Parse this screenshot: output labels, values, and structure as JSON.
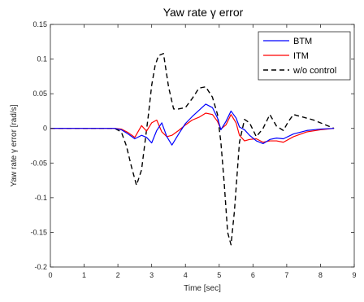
{
  "chart_data": {
    "type": "line",
    "title": "Yaw rate γ error",
    "xlabel": "Time [sec]",
    "ylabel": "Yaw rate γ error [rad/s]",
    "xlim": [
      0,
      9
    ],
    "ylim": [
      -0.2,
      0.15
    ],
    "xticks": [
      0,
      1,
      2,
      3,
      4,
      5,
      6,
      7,
      8,
      9
    ],
    "yticks": [
      -0.2,
      -0.15,
      -0.1,
      -0.05,
      0,
      0.05,
      0.1,
      0.15
    ],
    "ytick_labels": [
      "-0.2",
      "-0.15",
      "-0.1",
      "-0.05",
      "0",
      "0.05",
      "0.1",
      "0.15"
    ],
    "grid": false,
    "legend_position": "top-right",
    "series": [
      {
        "name": "BTM",
        "color": "#0000ff",
        "dash": "solid",
        "x": [
          0,
          1.9,
          2.1,
          2.3,
          2.5,
          2.7,
          2.85,
          3.0,
          3.15,
          3.3,
          3.45,
          3.6,
          3.8,
          4.0,
          4.2,
          4.4,
          4.6,
          4.8,
          4.95,
          5.05,
          5.2,
          5.35,
          5.5,
          5.6,
          5.75,
          5.9,
          6.1,
          6.3,
          6.5,
          6.7,
          6.9,
          7.2,
          7.6,
          8.0,
          8.4
        ],
        "y": [
          0,
          0,
          -0.002,
          -0.008,
          -0.015,
          -0.01,
          -0.013,
          -0.021,
          -0.003,
          0.008,
          -0.012,
          -0.024,
          -0.008,
          0.007,
          0.017,
          0.026,
          0.035,
          0.03,
          0.015,
          -0.002,
          0.01,
          0.025,
          0.015,
          0.002,
          -0.002,
          -0.01,
          -0.018,
          -0.022,
          -0.016,
          -0.014,
          -0.015,
          -0.008,
          -0.003,
          -0.001,
          0
        ]
      },
      {
        "name": "ITM",
        "color": "#ff0000",
        "dash": "solid",
        "x": [
          0,
          1.9,
          2.1,
          2.3,
          2.5,
          2.7,
          2.85,
          3.0,
          3.15,
          3.3,
          3.45,
          3.6,
          3.8,
          4.0,
          4.2,
          4.4,
          4.6,
          4.8,
          4.95,
          5.05,
          5.2,
          5.35,
          5.5,
          5.6,
          5.75,
          5.9,
          6.1,
          6.3,
          6.5,
          6.7,
          6.9,
          7.2,
          7.6,
          8.0,
          8.4
        ],
        "y": [
          0,
          0,
          -0.001,
          -0.006,
          -0.013,
          0.004,
          -0.004,
          0.008,
          0.012,
          -0.005,
          -0.012,
          -0.01,
          -0.003,
          0.005,
          0.012,
          0.016,
          0.022,
          0.02,
          0.01,
          -0.001,
          0.005,
          0.02,
          0.008,
          -0.01,
          -0.018,
          -0.016,
          -0.015,
          -0.02,
          -0.018,
          -0.018,
          -0.02,
          -0.012,
          -0.005,
          -0.002,
          0
        ]
      },
      {
        "name": "w/o control",
        "color": "#000000",
        "dash": "dashed",
        "x": [
          0,
          1.9,
          2.1,
          2.25,
          2.4,
          2.55,
          2.7,
          2.9,
          3.0,
          3.1,
          3.2,
          3.35,
          3.5,
          3.65,
          3.8,
          4.0,
          4.2,
          4.4,
          4.6,
          4.8,
          4.95,
          5.05,
          5.15,
          5.25,
          5.35,
          5.45,
          5.6,
          5.75,
          5.9,
          6.1,
          6.3,
          6.5,
          6.7,
          6.9,
          7.05,
          7.2,
          7.5,
          7.8,
          8.1,
          8.4
        ],
        "y": [
          0,
          0,
          -0.005,
          -0.025,
          -0.055,
          -0.082,
          -0.06,
          0.018,
          0.062,
          0.09,
          0.105,
          0.108,
          0.06,
          0.028,
          0.028,
          0.03,
          0.043,
          0.058,
          0.06,
          0.045,
          0.02,
          -0.02,
          -0.08,
          -0.15,
          -0.168,
          -0.12,
          -0.02,
          0.013,
          0.008,
          -0.012,
          0.0,
          0.02,
          0.003,
          -0.003,
          0.01,
          0.02,
          0.016,
          0.012,
          0.006,
          0
        ]
      }
    ]
  }
}
